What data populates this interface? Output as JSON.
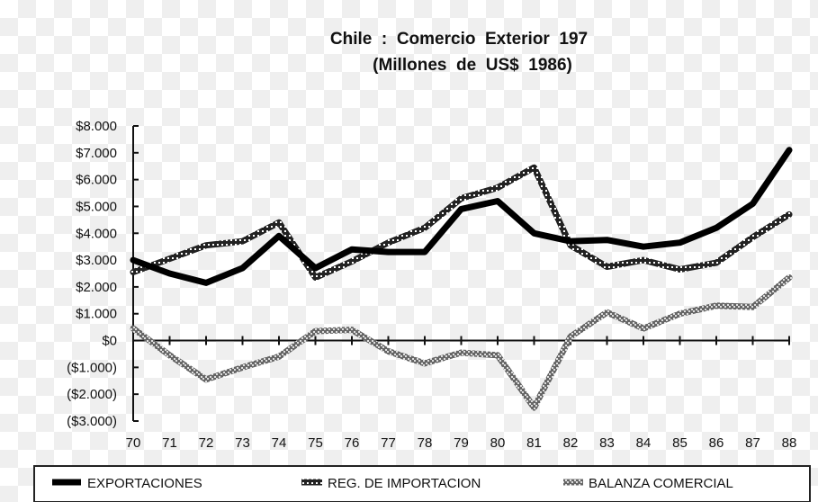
{
  "chart_data": {
    "type": "line",
    "title": "Chile  :  Comercio  Exterior  197",
    "subtitle": "(Millones  de  US$  1986)",
    "xlabel": "",
    "ylabel": "",
    "x": [
      "70",
      "71",
      "72",
      "73",
      "74",
      "75",
      "76",
      "77",
      "78",
      "79",
      "80",
      "81",
      "82",
      "83",
      "84",
      "85",
      "86",
      "87",
      "88"
    ],
    "y_ticks": [
      "$8.000",
      "$7.000",
      "$6.000",
      "$5.000",
      "$4.000",
      "$3.000",
      "$2.000",
      "$1.000",
      "$0",
      "($1.000)",
      "($2.000)",
      "($3.000)"
    ],
    "ylim": [
      -3000,
      8000
    ],
    "series": [
      {
        "name": "EXPORTACIONES",
        "color": "#000000",
        "style": "solid",
        "values": [
          3000,
          2500,
          2150,
          2700,
          3900,
          2700,
          3400,
          3300,
          3300,
          4900,
          5200,
          4000,
          3700,
          3750,
          3500,
          3650,
          4200,
          5100,
          7100
        ]
      },
      {
        "name": "REG. DE IMPORTACION",
        "color": "#000000",
        "style": "hatched-double",
        "values": [
          2550,
          3050,
          3550,
          3700,
          4400,
          2350,
          2950,
          3650,
          4200,
          5300,
          5700,
          6450,
          3550,
          2750,
          3000,
          2650,
          2900,
          3850,
          4700
        ]
      },
      {
        "name": "BALANZA COMERCIAL",
        "color": "#777777",
        "style": "hatched",
        "values": [
          450,
          -550,
          -1450,
          -1000,
          -600,
          350,
          400,
          -400,
          -850,
          -450,
          -550,
          -2500,
          150,
          1050,
          450,
          1000,
          1300,
          1250,
          2350
        ]
      }
    ],
    "grid": false,
    "legend": "bottom"
  }
}
